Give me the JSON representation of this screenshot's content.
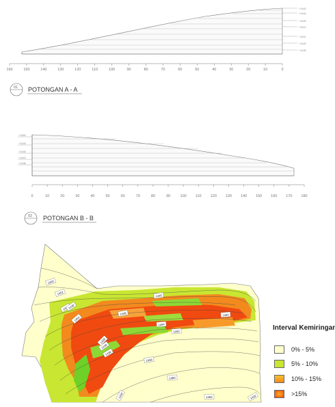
{
  "section_a": {
    "title": "POTONGAN A - A",
    "number": "01",
    "axis_ticks": [
      "160",
      "150",
      "140",
      "130",
      "120",
      "110",
      "100",
      "90",
      "80",
      "70",
      "60",
      "50",
      "40",
      "30",
      "20",
      "10",
      "0"
    ],
    "elevation_labels": [
      "+1442",
      "+1444",
      "+1445",
      "+1412",
      "+1441",
      "+1440",
      "+1439"
    ]
  },
  "section_b": {
    "title": "POTONGAN B - B",
    "number": "02",
    "axis_ticks": [
      "0",
      "10",
      "20",
      "30",
      "40",
      "50",
      "60",
      "70",
      "80",
      "90",
      "100",
      "110",
      "120",
      "130",
      "140",
      "150",
      "160",
      "170",
      "180"
    ],
    "elevation_labels": [
      "+1450",
      "+1448",
      "+1446",
      "+1440",
      "+1438"
    ]
  },
  "map": {
    "contour_labels": [
      "1450",
      "1452",
      "1454",
      "1456",
      "1448",
      "1446",
      "1444",
      "1442",
      "1440",
      "1438",
      "1436",
      "1458",
      "1460",
      "1462",
      "1434",
      "1432",
      "1430",
      "1428"
    ]
  },
  "legend": {
    "title": "Interval Kemiringan:",
    "items": [
      {
        "label": "0% - 5%",
        "color": "#ffffcc"
      },
      {
        "label": "5% - 10%",
        "color": "#c8e632"
      },
      {
        "label": "10% - 15%",
        "color": "#f28a1e"
      },
      {
        "label": ">15%",
        "color": "#f04a10"
      }
    ]
  }
}
